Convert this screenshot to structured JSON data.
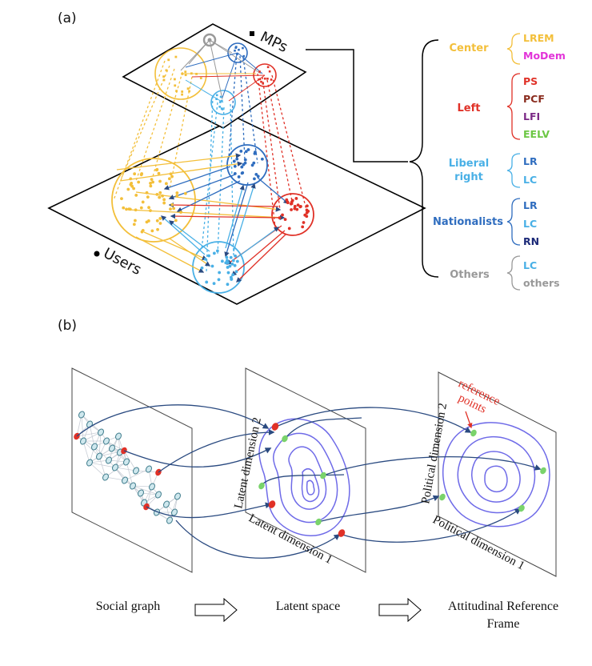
{
  "panel_a": {
    "label": "(a)",
    "layer_mps": "MPs",
    "layer_users": "Users",
    "groups": [
      {
        "name": "Center",
        "color": "#f3bf3a",
        "parties": [
          {
            "name": "LREM",
            "color": "#f3bf3a"
          },
          {
            "name": "MoDem",
            "color": "#e233d8"
          }
        ]
      },
      {
        "name": "Left",
        "color": "#e03127",
        "parties": [
          {
            "name": "PS",
            "color": "#e03127"
          },
          {
            "name": "PCF",
            "color": "#8a2c1e"
          },
          {
            "name": "LFI",
            "color": "#7b2a86"
          },
          {
            "name": "EELV",
            "color": "#6cc744"
          }
        ]
      },
      {
        "name_lines": [
          "Liberal",
          "right"
        ],
        "color": "#49b0e6",
        "parties": [
          {
            "name": "LR",
            "color": "#2f6dbf"
          },
          {
            "name": "LC",
            "color": "#49b0e6"
          }
        ]
      },
      {
        "name": "Nationalists",
        "color": "#2f6dbf",
        "parties": [
          {
            "name": "LR",
            "color": "#2f6dbf"
          },
          {
            "name": "LC",
            "color": "#49b0e6"
          },
          {
            "name": "RN",
            "color": "#1c2a78"
          }
        ]
      },
      {
        "name": "Others",
        "color": "#999999",
        "parties": [
          {
            "name": "LC",
            "color": "#49b0e6"
          },
          {
            "name": "others",
            "color": "#999999"
          }
        ]
      }
    ]
  },
  "panel_b": {
    "label": "(b)",
    "latent_dim_2": "Latent dimension 2",
    "latent_dim_1": "Latent dimension 1",
    "political_dim_2": "Political dimension 2",
    "political_dim_1": "Political dimension 1",
    "reference_points_lines": [
      "reference",
      "points"
    ],
    "reference_points_color": "#e03127",
    "captions": {
      "social_graph": "Social graph",
      "latent_space": "Latent space",
      "reference_frame_lines": [
        "Attitudinal Reference",
        "Frame"
      ]
    }
  }
}
